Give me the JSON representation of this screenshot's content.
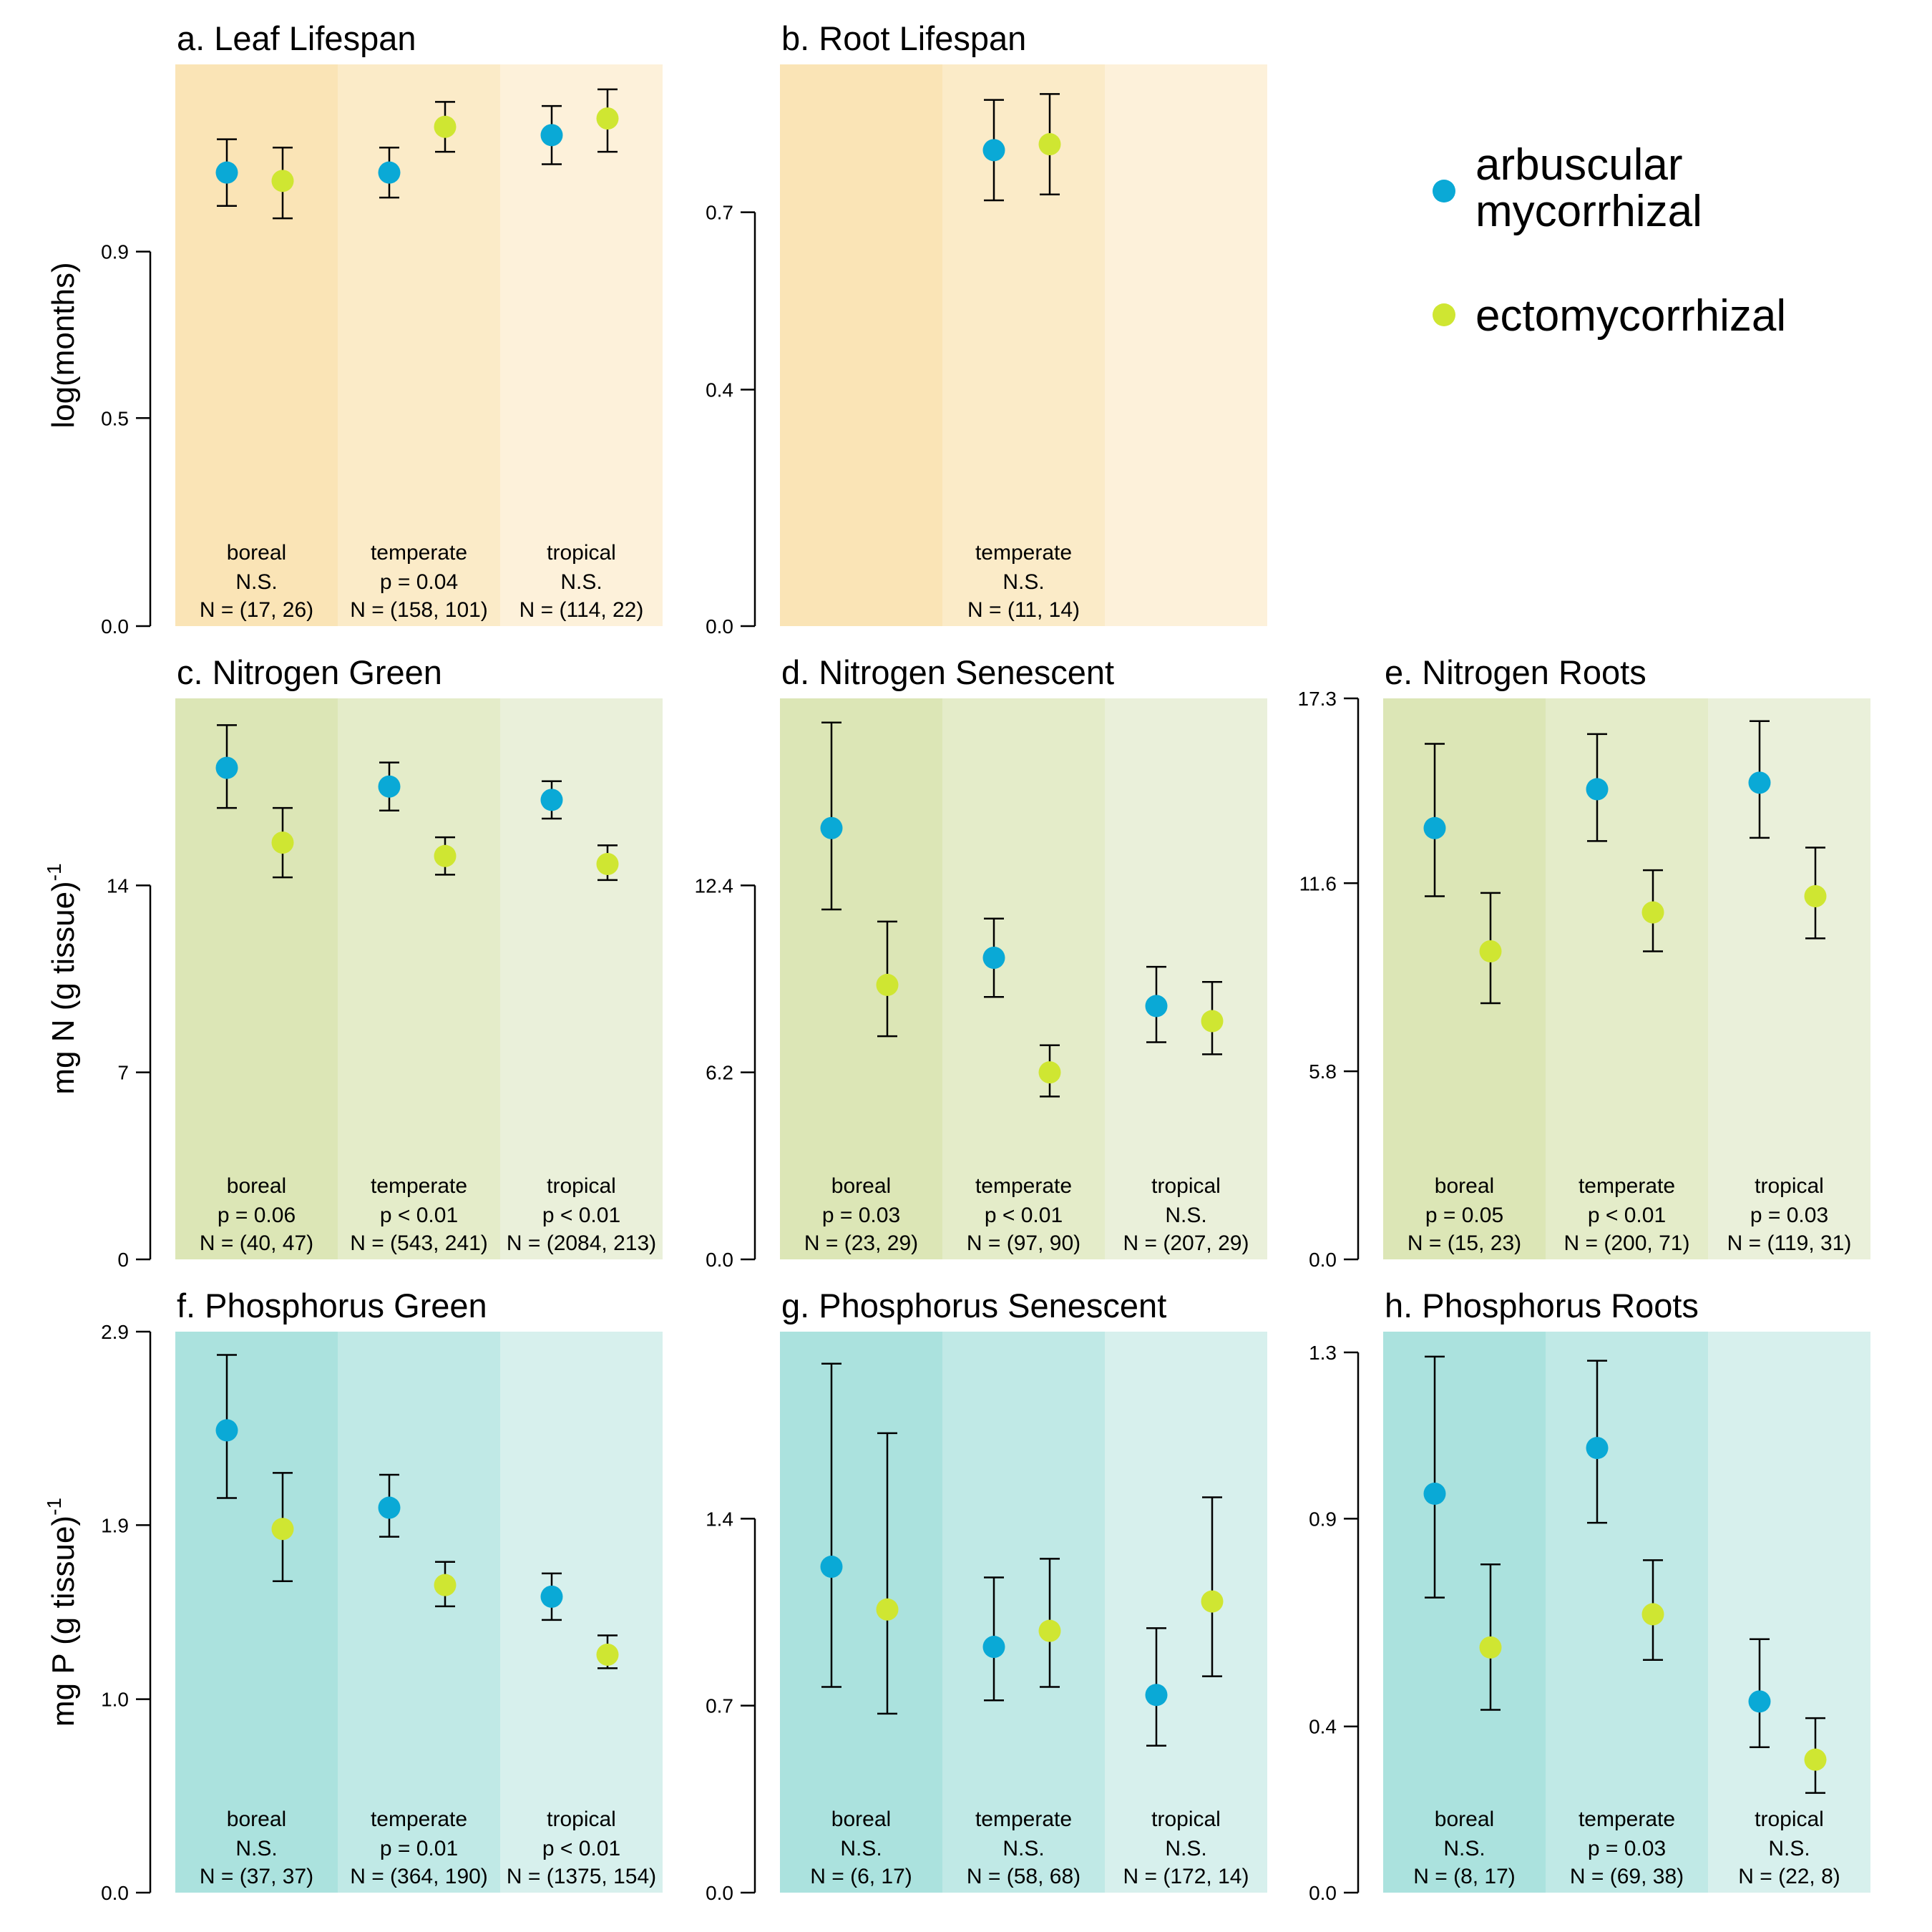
{
  "colors": {
    "arbuscular": "#0aa9d6",
    "ectomycorrhizal": "#cfe632",
    "lifespan_bg": [
      "#fae4b6",
      "#fbebc8",
      "#fdf1da"
    ],
    "nitrogen_bg": [
      "#dce6b6",
      "#e4ecc9",
      "#eaf0da"
    ],
    "phosphorus_bg": [
      "#abe2de",
      "#c0e9e6",
      "#d7f0ed"
    ]
  },
  "legend": {
    "items": [
      {
        "label_lines": [
          "arbuscular",
          "mycorrhizal"
        ],
        "color": "#0aa9d6"
      },
      {
        "label_lines": [
          "ectomycorrhizal"
        ],
        "color": "#cfe632"
      }
    ]
  },
  "row_labels": {
    "lifespan": {
      "text": "log(months)"
    },
    "nitrogen": {
      "text": "mg N (g tissue)",
      "sup": "-1"
    },
    "phosphorus": {
      "text": "mg P (g tissue)",
      "sup": "-1"
    }
  },
  "chart_data": [
    {
      "id": "a",
      "type": "scatter",
      "error_bars": true,
      "palette": "lifespan",
      "title": "a. Leaf Lifespan",
      "ylim": [
        0,
        1.35
      ],
      "yticks": [
        {
          "v": 0,
          "label": "0.0"
        },
        {
          "v": 0.5,
          "label": "0.5"
        },
        {
          "v": 0.9,
          "label": "0.9"
        }
      ],
      "series_names": [
        "arbuscular mycorrhizal",
        "ectomycorrhizal"
      ],
      "groups": [
        {
          "biome": "boreal",
          "sig": "N.S.",
          "n": "N = (17, 26)",
          "shaded": true,
          "points": [
            {
              "y": 1.09,
              "lo": 1.01,
              "hi": 1.17
            },
            {
              "y": 1.07,
              "lo": 0.98,
              "hi": 1.15
            }
          ]
        },
        {
          "biome": "temperate",
          "sig": "p = 0.04",
          "n": "N = (158, 101)",
          "shaded": true,
          "points": [
            {
              "y": 1.09,
              "lo": 1.03,
              "hi": 1.15
            },
            {
              "y": 1.2,
              "lo": 1.14,
              "hi": 1.26
            }
          ]
        },
        {
          "biome": "tropical",
          "sig": "N.S.",
          "n": "N = (114, 22)",
          "shaded": true,
          "points": [
            {
              "y": 1.18,
              "lo": 1.11,
              "hi": 1.25
            },
            {
              "y": 1.22,
              "lo": 1.14,
              "hi": 1.29
            }
          ]
        }
      ]
    },
    {
      "id": "b",
      "type": "scatter",
      "error_bars": true,
      "palette": "lifespan",
      "title": "b. Root Lifespan",
      "ylim": [
        0,
        0.95
      ],
      "yticks": [
        {
          "v": 0,
          "label": "0.0"
        },
        {
          "v": 0.4,
          "label": "0.4"
        },
        {
          "v": 0.7,
          "label": "0.7"
        }
      ],
      "series_names": [
        "arbuscular mycorrhizal",
        "ectomycorrhizal"
      ],
      "groups": [
        {
          "biome": "",
          "sig": "",
          "n": "",
          "shaded": true,
          "points": []
        },
        {
          "biome": "temperate",
          "sig": "N.S.",
          "n": "N = (11, 14)",
          "shaded": true,
          "points": [
            {
              "y": 0.805,
              "lo": 0.72,
              "hi": 0.89
            },
            {
              "y": 0.815,
              "lo": 0.73,
              "hi": 0.9
            }
          ]
        },
        {
          "biome": "",
          "sig": "",
          "n": "",
          "shaded": true,
          "points": []
        }
      ]
    },
    {
      "id": "c",
      "type": "scatter",
      "error_bars": true,
      "palette": "nitrogen",
      "title": "c. Nitrogen Green",
      "ylim": [
        0,
        21
      ],
      "yticks": [
        {
          "v": 0,
          "label": "0"
        },
        {
          "v": 7,
          "label": "7"
        },
        {
          "v": 14,
          "label": "14"
        }
      ],
      "series_names": [
        "arbuscular mycorrhizal",
        "ectomycorrhizal"
      ],
      "groups": [
        {
          "biome": "boreal",
          "sig": "p = 0.06",
          "n": "N = (40, 47)",
          "shaded": true,
          "points": [
            {
              "y": 18.4,
              "lo": 16.9,
              "hi": 20.0
            },
            {
              "y": 15.6,
              "lo": 14.3,
              "hi": 16.9
            }
          ]
        },
        {
          "biome": "temperate",
          "sig": "p < 0.01",
          "n": "N = (543, 241)",
          "shaded": true,
          "points": [
            {
              "y": 17.7,
              "lo": 16.8,
              "hi": 18.6
            },
            {
              "y": 15.1,
              "lo": 14.4,
              "hi": 15.8
            }
          ]
        },
        {
          "biome": "tropical",
          "sig": "p < 0.01",
          "n": "N = (2084, 213)",
          "shaded": true,
          "points": [
            {
              "y": 17.2,
              "lo": 16.5,
              "hi": 17.9
            },
            {
              "y": 14.8,
              "lo": 14.2,
              "hi": 15.5
            }
          ]
        }
      ]
    },
    {
      "id": "d",
      "type": "scatter",
      "error_bars": true,
      "palette": "nitrogen",
      "title": "d. Nitrogen Senescent",
      "ylim": [
        0,
        18.6
      ],
      "yticks": [
        {
          "v": 0,
          "label": "0.0"
        },
        {
          "v": 6.2,
          "label": "6.2"
        },
        {
          "v": 12.4,
          "label": "12.4"
        }
      ],
      "series_names": [
        "arbuscular mycorrhizal",
        "ectomycorrhizal"
      ],
      "groups": [
        {
          "biome": "boreal",
          "sig": "p = 0.03",
          "n": "N = (23, 29)",
          "shaded": true,
          "points": [
            {
              "y": 14.3,
              "lo": 11.6,
              "hi": 17.8
            },
            {
              "y": 9.1,
              "lo": 7.4,
              "hi": 11.2
            }
          ]
        },
        {
          "biome": "temperate",
          "sig": "p < 0.01",
          "n": "N = (97, 90)",
          "shaded": true,
          "points": [
            {
              "y": 10.0,
              "lo": 8.7,
              "hi": 11.3
            },
            {
              "y": 6.2,
              "lo": 5.4,
              "hi": 7.1
            }
          ]
        },
        {
          "biome": "tropical",
          "sig": "N.S.",
          "n": "N = (207, 29)",
          "shaded": true,
          "points": [
            {
              "y": 8.4,
              "lo": 7.2,
              "hi": 9.7
            },
            {
              "y": 7.9,
              "lo": 6.8,
              "hi": 9.2
            }
          ]
        }
      ]
    },
    {
      "id": "e",
      "type": "scatter",
      "error_bars": true,
      "palette": "nitrogen",
      "title": "e. Nitrogen Roots",
      "ylim": [
        0,
        17.3
      ],
      "yticks": [
        {
          "v": 0,
          "label": "0.0"
        },
        {
          "v": 5.8,
          "label": "5.8"
        },
        {
          "v": 11.6,
          "label": "11.6"
        },
        {
          "v": 17.3,
          "label": "17.3"
        }
      ],
      "series_names": [
        "arbuscular mycorrhizal",
        "ectomycorrhizal"
      ],
      "groups": [
        {
          "biome": "boreal",
          "sig": "p = 0.05",
          "n": "N = (15, 23)",
          "shaded": true,
          "points": [
            {
              "y": 13.3,
              "lo": 11.2,
              "hi": 15.9
            },
            {
              "y": 9.5,
              "lo": 7.9,
              "hi": 11.3
            }
          ]
        },
        {
          "biome": "temperate",
          "sig": "p < 0.01",
          "n": "N = (200, 71)",
          "shaded": true,
          "points": [
            {
              "y": 14.5,
              "lo": 12.9,
              "hi": 16.2
            },
            {
              "y": 10.7,
              "lo": 9.5,
              "hi": 12.0
            }
          ]
        },
        {
          "biome": "tropical",
          "sig": "p = 0.03",
          "n": "N = (119, 31)",
          "shaded": true,
          "points": [
            {
              "y": 14.7,
              "lo": 13.0,
              "hi": 16.6
            },
            {
              "y": 11.2,
              "lo": 9.9,
              "hi": 12.7
            }
          ]
        }
      ]
    },
    {
      "id": "f",
      "type": "scatter",
      "error_bars": true,
      "palette": "phosphorus",
      "title": "f. Phosphorus Green",
      "ylim": [
        0,
        2.9
      ],
      "yticks": [
        {
          "v": 0,
          "label": "0.0"
        },
        {
          "v": 1.0,
          "label": "1.0"
        },
        {
          "v": 1.9,
          "label": "1.9"
        },
        {
          "v": 2.9,
          "label": "2.9"
        }
      ],
      "series_names": [
        "arbuscular mycorrhizal",
        "ectomycorrhizal"
      ],
      "groups": [
        {
          "biome": "boreal",
          "sig": "N.S.",
          "n": "N = (37, 37)",
          "shaded": true,
          "points": [
            {
              "y": 2.39,
              "lo": 2.04,
              "hi": 2.78
            },
            {
              "y": 1.88,
              "lo": 1.61,
              "hi": 2.17
            }
          ]
        },
        {
          "biome": "temperate",
          "sig": "p = 0.01",
          "n": "N = (364, 190)",
          "shaded": true,
          "points": [
            {
              "y": 1.99,
              "lo": 1.84,
              "hi": 2.16
            },
            {
              "y": 1.59,
              "lo": 1.48,
              "hi": 1.71
            }
          ]
        },
        {
          "biome": "tropical",
          "sig": "p < 0.01",
          "n": "N = (1375, 154)",
          "shaded": true,
          "points": [
            {
              "y": 1.53,
              "lo": 1.41,
              "hi": 1.65
            },
            {
              "y": 1.23,
              "lo": 1.16,
              "hi": 1.33
            }
          ]
        }
      ]
    },
    {
      "id": "g",
      "type": "scatter",
      "error_bars": true,
      "palette": "phosphorus",
      "title": "g. Phosphorus Senescent",
      "ylim": [
        0,
        2.1
      ],
      "yticks": [
        {
          "v": 0,
          "label": "0.0"
        },
        {
          "v": 0.7,
          "label": "0.7"
        },
        {
          "v": 1.4,
          "label": "1.4"
        }
      ],
      "series_names": [
        "arbuscular mycorrhizal",
        "ectomycorrhizal"
      ],
      "groups": [
        {
          "biome": "boreal",
          "sig": "N.S.",
          "n": "N = (6, 17)",
          "shaded": true,
          "points": [
            {
              "y": 1.22,
              "lo": 0.77,
              "hi": 1.98
            },
            {
              "y": 1.06,
              "lo": 0.67,
              "hi": 1.72
            }
          ]
        },
        {
          "biome": "temperate",
          "sig": "N.S.",
          "n": "N = (58, 68)",
          "shaded": true,
          "points": [
            {
              "y": 0.92,
              "lo": 0.72,
              "hi": 1.18
            },
            {
              "y": 0.98,
              "lo": 0.77,
              "hi": 1.25
            }
          ]
        },
        {
          "biome": "tropical",
          "sig": "N.S.",
          "n": "N = (172, 14)",
          "shaded": true,
          "points": [
            {
              "y": 0.74,
              "lo": 0.55,
              "hi": 0.99
            },
            {
              "y": 1.09,
              "lo": 0.81,
              "hi": 1.48
            }
          ]
        }
      ]
    },
    {
      "id": "h",
      "type": "scatter",
      "error_bars": true,
      "palette": "phosphorus",
      "title": "h. Phosphorus Roots",
      "ylim": [
        0,
        1.35
      ],
      "yticks": [
        {
          "v": 0,
          "label": "0.0"
        },
        {
          "v": 0.4,
          "label": "0.4"
        },
        {
          "v": 0.9,
          "label": "0.9"
        },
        {
          "v": 1.3,
          "label": "1.3"
        }
      ],
      "series_names": [
        "arbuscular mycorrhizal",
        "ectomycorrhizal"
      ],
      "groups": [
        {
          "biome": "boreal",
          "sig": "N.S.",
          "n": "N = (8, 17)",
          "shaded": true,
          "points": [
            {
              "y": 0.96,
              "lo": 0.71,
              "hi": 1.29
            },
            {
              "y": 0.59,
              "lo": 0.44,
              "hi": 0.79
            }
          ]
        },
        {
          "biome": "temperate",
          "sig": "p = 0.03",
          "n": "N = (69, 38)",
          "shaded": true,
          "points": [
            {
              "y": 1.07,
              "lo": 0.89,
              "hi": 1.28
            },
            {
              "y": 0.67,
              "lo": 0.56,
              "hi": 0.8
            }
          ]
        },
        {
          "biome": "tropical",
          "sig": "N.S.",
          "n": "N = (22, 8)",
          "shaded": true,
          "points": [
            {
              "y": 0.46,
              "lo": 0.35,
              "hi": 0.61
            },
            {
              "y": 0.32,
              "lo": 0.24,
              "hi": 0.42
            }
          ]
        }
      ]
    }
  ]
}
